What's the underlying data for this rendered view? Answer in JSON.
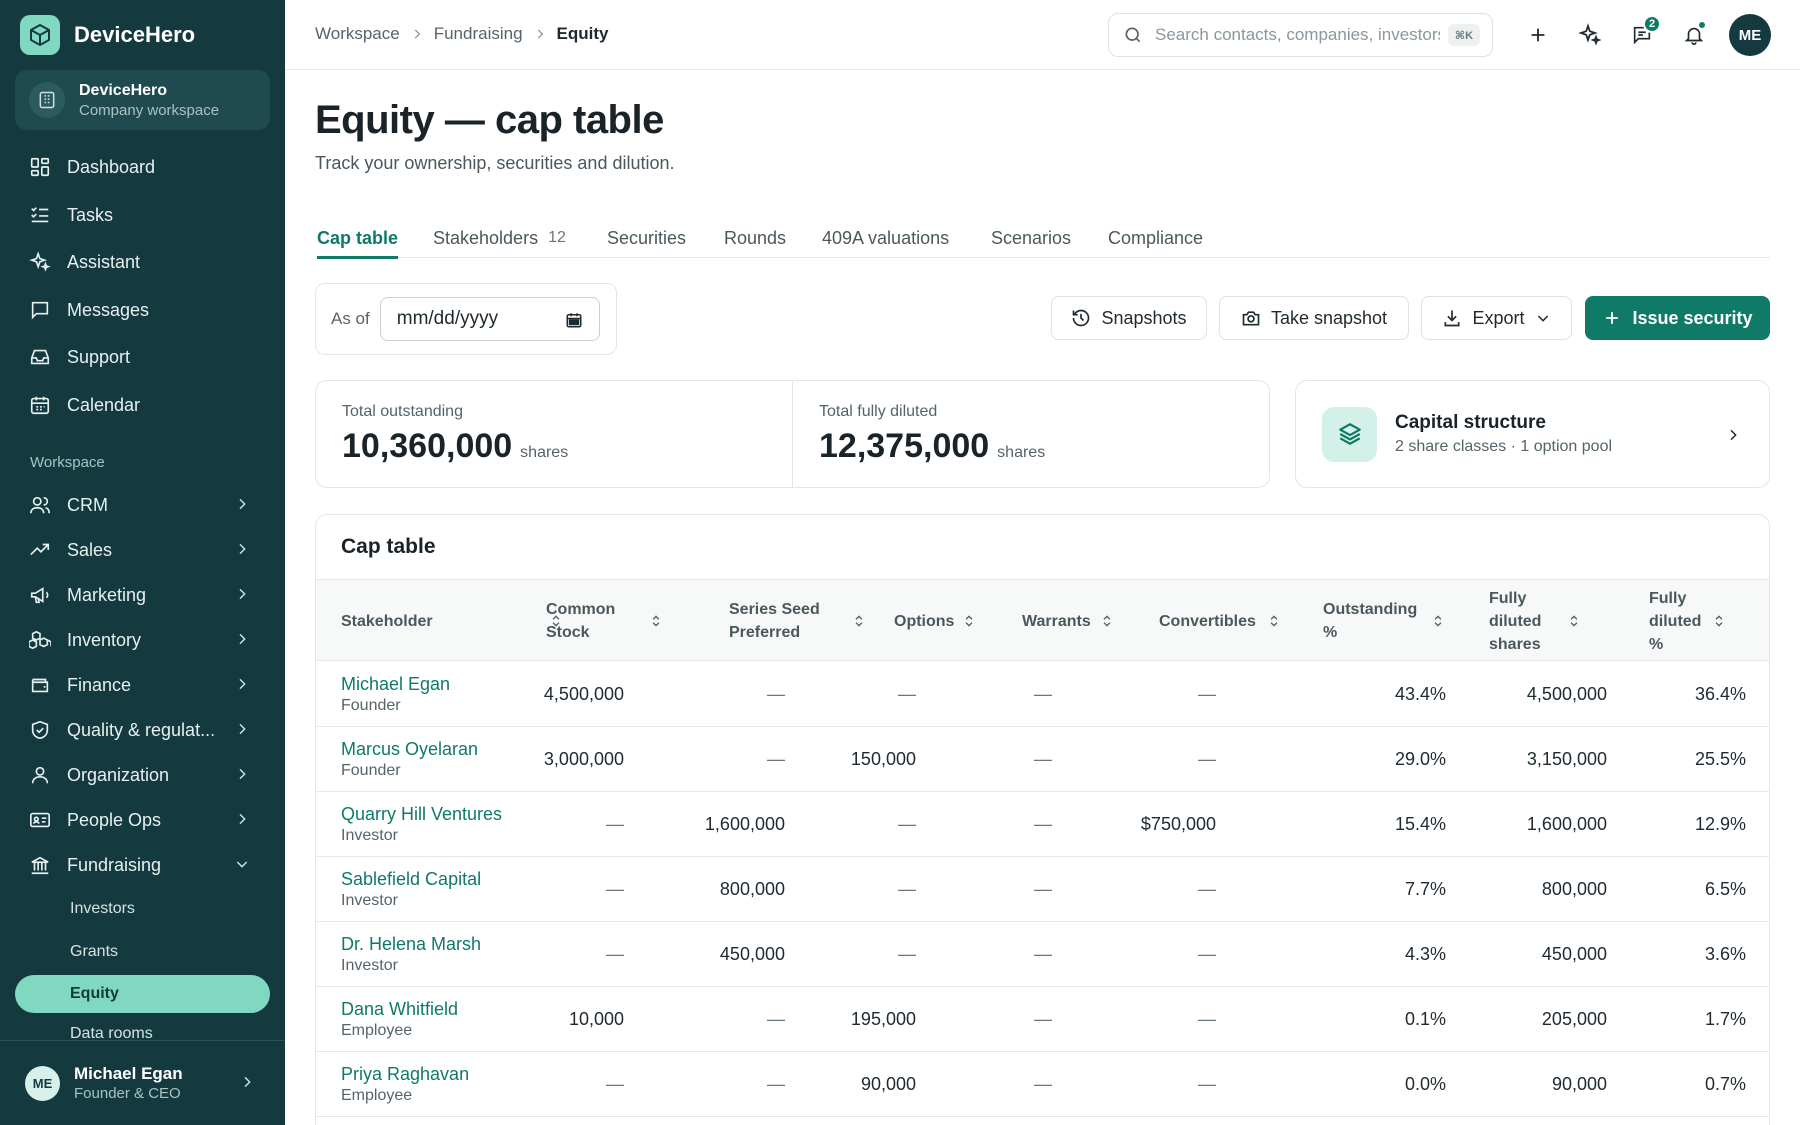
{
  "app": {
    "name": "DeviceHero"
  },
  "workspace": {
    "name": "DeviceHero",
    "subtitle": "Company workspace"
  },
  "sidebar": {
    "primary": [
      {
        "label": "Dashboard",
        "icon": "grid-icon"
      },
      {
        "label": "Tasks",
        "icon": "list-checks-icon"
      },
      {
        "label": "Assistant",
        "icon": "sparkles-icon"
      },
      {
        "label": "Messages",
        "icon": "message-square-icon"
      },
      {
        "label": "Support",
        "icon": "inbox-icon"
      },
      {
        "label": "Calendar",
        "icon": "calendar-icon"
      }
    ],
    "section_label": "Workspace",
    "groups": [
      {
        "label": "CRM",
        "icon": "users-icon"
      },
      {
        "label": "Sales",
        "icon": "trending-up-icon"
      },
      {
        "label": "Marketing",
        "icon": "megaphone-icon"
      },
      {
        "label": "Inventory",
        "icon": "boxes-icon"
      },
      {
        "label": "Finance",
        "icon": "wallet-icon"
      },
      {
        "label": "Quality & regulat...",
        "icon": "shield-check-icon"
      },
      {
        "label": "Organization",
        "icon": "user-icon"
      },
      {
        "label": "People Ops",
        "icon": "id-card-icon"
      },
      {
        "label": "Fundraising",
        "icon": "landmark-icon"
      }
    ],
    "fundraising_children": [
      "Investors",
      "Grants",
      "Equity",
      "Data rooms"
    ],
    "active_child": "Equity",
    "user": {
      "initials": "ME",
      "name": "Michael Egan",
      "role": "Founder & CEO"
    }
  },
  "header": {
    "breadcrumbs": [
      "Workspace",
      "Fundraising",
      "Equity"
    ],
    "search_placeholder": "Search contacts, companies, investors…",
    "search_shortcut": "⌘K",
    "messages_badge": "2",
    "avatar_initials": "ME"
  },
  "page": {
    "title": "Equity — cap table",
    "subtitle": "Track your ownership, securities and dilution."
  },
  "tabs": [
    {
      "label": "Cap table",
      "count": ""
    },
    {
      "label": "Stakeholders",
      "count": "12"
    },
    {
      "label": "Securities",
      "count": ""
    },
    {
      "label": "Rounds",
      "count": ""
    },
    {
      "label": "409A valuations",
      "count": ""
    },
    {
      "label": "Scenarios",
      "count": ""
    },
    {
      "label": "Compliance",
      "count": ""
    }
  ],
  "active_tab": "Cap table",
  "toolbar": {
    "as_of_label": "As of",
    "date_placeholder": "mm/dd/yyyy",
    "snapshots": "Snapshots",
    "take_snapshot": "Take snapshot",
    "export": "Export",
    "issue_security": "Issue security"
  },
  "stats": {
    "outstanding_label": "Total outstanding",
    "outstanding_value": "10,360,000",
    "fully_diluted_label": "Total fully diluted",
    "fully_diluted_value": "12,375,000",
    "unit": "shares"
  },
  "capital_structure": {
    "title": "Capital structure",
    "subtitle": "2 share classes · 1 option pool"
  },
  "cap_table": {
    "title": "Cap table",
    "columns": [
      "Stakeholder",
      "Common Stock",
      "Series Seed Preferred",
      "Options",
      "Warrants",
      "Convertibles",
      "Outstanding %",
      "Fully diluted shares",
      "Fully diluted %"
    ],
    "rows": [
      {
        "name": "Michael Egan",
        "role": "Founder",
        "common": "4,500,000",
        "seed": "—",
        "options": "—",
        "warrants": "—",
        "convertibles": "—",
        "outstanding_pct": "43.4%",
        "fd_shares": "4,500,000",
        "fd_pct": "36.4%"
      },
      {
        "name": "Marcus Oyelaran",
        "role": "Founder",
        "common": "3,000,000",
        "seed": "—",
        "options": "150,000",
        "warrants": "—",
        "convertibles": "—",
        "outstanding_pct": "29.0%",
        "fd_shares": "3,150,000",
        "fd_pct": "25.5%"
      },
      {
        "name": "Quarry Hill Ventures",
        "role": "Investor",
        "common": "—",
        "seed": "1,600,000",
        "options": "—",
        "warrants": "—",
        "convertibles": "$750,000",
        "outstanding_pct": "15.4%",
        "fd_shares": "1,600,000",
        "fd_pct": "12.9%"
      },
      {
        "name": "Sablefield Capital",
        "role": "Investor",
        "common": "—",
        "seed": "800,000",
        "options": "—",
        "warrants": "—",
        "convertibles": "—",
        "outstanding_pct": "7.7%",
        "fd_shares": "800,000",
        "fd_pct": "6.5%"
      },
      {
        "name": "Dr. Helena Marsh",
        "role": "Investor",
        "common": "—",
        "seed": "450,000",
        "options": "—",
        "warrants": "—",
        "convertibles": "—",
        "outstanding_pct": "4.3%",
        "fd_shares": "450,000",
        "fd_pct": "3.6%"
      },
      {
        "name": "Dana Whitfield",
        "role": "Employee",
        "common": "10,000",
        "seed": "—",
        "options": "195,000",
        "warrants": "—",
        "convertibles": "—",
        "outstanding_pct": "0.1%",
        "fd_shares": "205,000",
        "fd_pct": "1.7%"
      },
      {
        "name": "Priya Raghavan",
        "role": "Employee",
        "common": "—",
        "seed": "—",
        "options": "90,000",
        "warrants": "—",
        "convertibles": "—",
        "outstanding_pct": "0.0%",
        "fd_shares": "90,000",
        "fd_pct": "0.7%"
      }
    ]
  },
  "colors": {
    "sidebar_bg": "#143a40",
    "accent": "#0f7a68",
    "accent_light": "#7fd8bf"
  }
}
